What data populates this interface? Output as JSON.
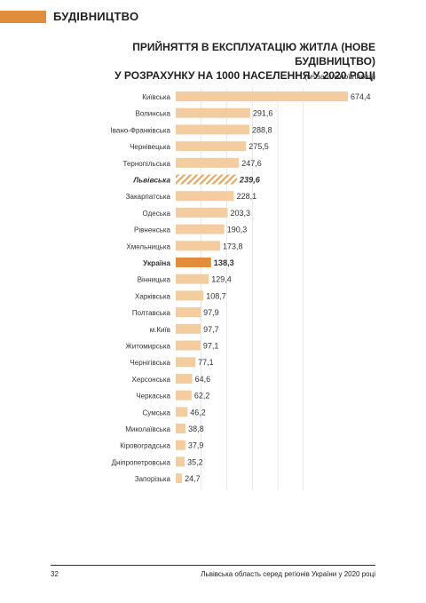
{
  "header": {
    "section": "БУДІВНИЦТВО"
  },
  "colors": {
    "accent": "#e08d3c",
    "bar": "#f3cc9f",
    "label_bold": "#222222",
    "hatch": "#e3a865"
  },
  "chart_data": {
    "type": "bar",
    "orientation": "horizontal",
    "title_lines": [
      "ПРИЙНЯТТЯ В ЕКСПЛУАТАЦІЮ ЖИТЛА (НОВЕ БУДІВНИЦТВО)",
      "У РОЗРАХУНКУ НА 1000 НАСЕЛЕННЯ У 2020 РОЦІ"
    ],
    "subtitle": "(м² загальної площі)",
    "xlim": [
      0,
      700
    ],
    "grid": true,
    "categories": [
      "Київська",
      "Волинська",
      "Івано-Франківська",
      "Чернівецька",
      "Тернопільська",
      "Львівська",
      "Закарпатська",
      "Одеська",
      "Рівненська",
      "Хмельницька",
      "Україна",
      "Вінницька",
      "Харківська",
      "Полтавська",
      "м.Київ",
      "Житомирська",
      "Чернігівська",
      "Херсонська",
      "Черкаська",
      "Сумська",
      "Миколаївська",
      "Кіровоградська",
      "Дніпропетровська",
      "Запорізька"
    ],
    "values": [
      674.4,
      291.6,
      288.8,
      275.5,
      247.6,
      239.6,
      228.1,
      203.3,
      190.3,
      173.8,
      138.3,
      129.4,
      108.7,
      97.9,
      97.7,
      97.1,
      77.1,
      64.6,
      62.2,
      46.2,
      38.8,
      37.9,
      35.2,
      24.7
    ],
    "value_labels": [
      "674,4",
      "291,6",
      "288,8",
      "275,5",
      "247,6",
      "239,6",
      "228,1",
      "203,3",
      "190,3",
      "173,8",
      "138,3",
      "129,4",
      "108,7",
      "97,9",
      "97,7",
      "97,1",
      "77,1",
      "64,6",
      "62,2",
      "46,2",
      "38,8",
      "37,9",
      "35,2",
      "24,7"
    ],
    "highlight": {
      "hatched": "Львівська",
      "solid": "Україна"
    }
  },
  "footer": {
    "page_number": "32",
    "text": "Львівська область серед регіонів України у 2020 році"
  }
}
